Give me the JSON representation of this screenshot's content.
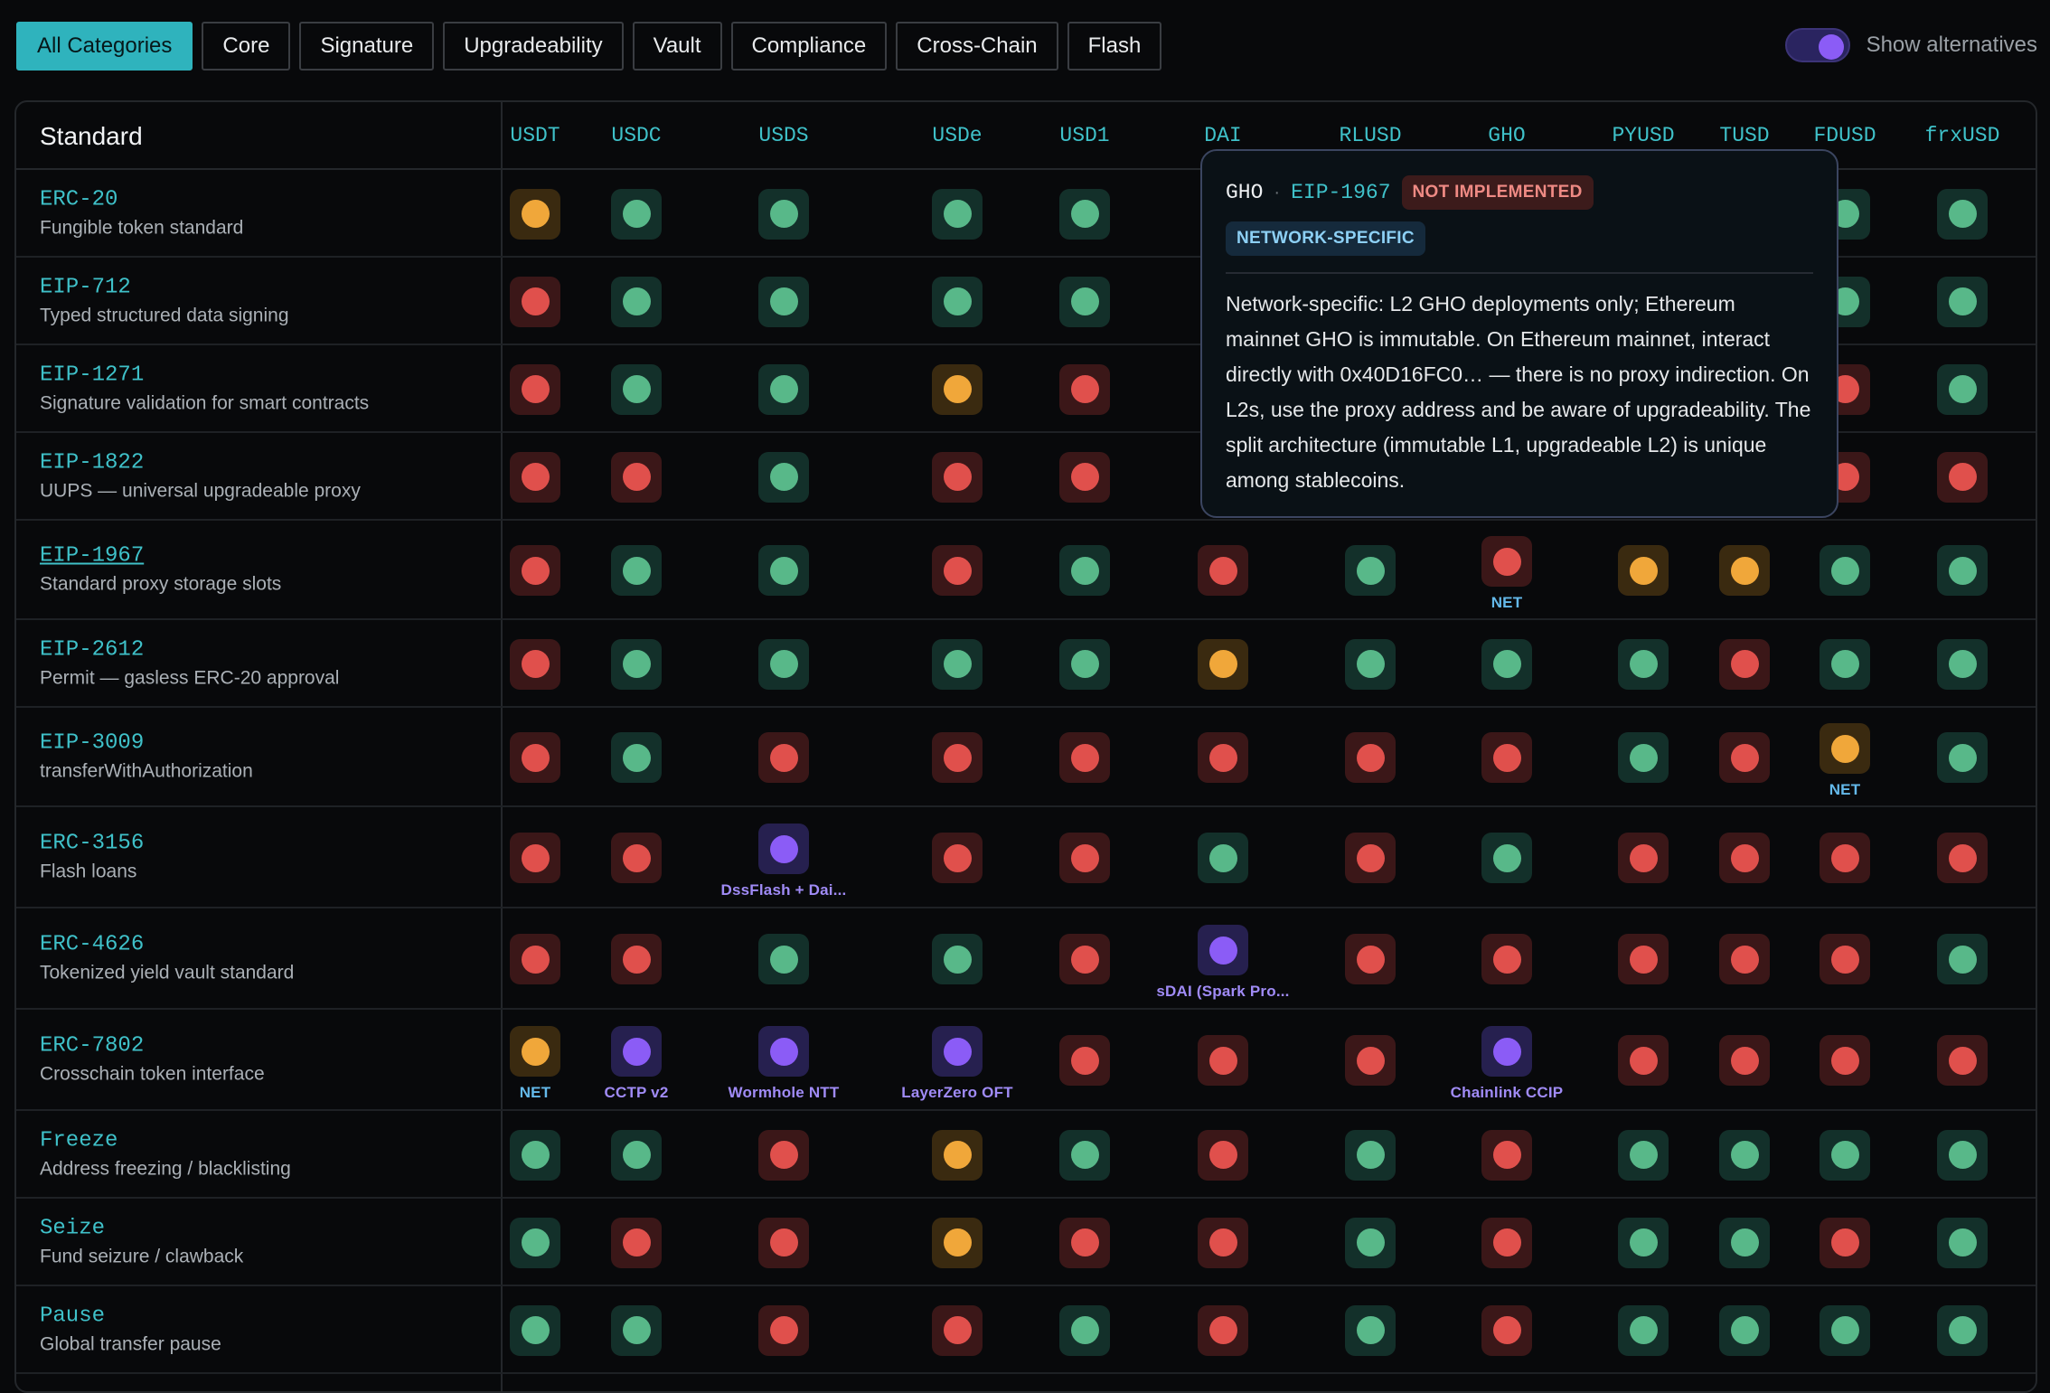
{
  "filters": {
    "categories": [
      "All Categories",
      "Core",
      "Signature",
      "Upgradeability",
      "Vault",
      "Compliance",
      "Cross-Chain",
      "Flash"
    ],
    "active": "All Categories"
  },
  "toggle": {
    "label": "Show alternatives",
    "on": true,
    "accent": "#8b5cf6"
  },
  "table": {
    "standard_header": "Standard",
    "columns": [
      "USDT",
      "USDC",
      "USDS",
      "USDe",
      "USD1",
      "DAI",
      "RLUSD",
      "GHO",
      "PYUSD",
      "TUSD",
      "FDUSD",
      "frxUSD"
    ],
    "rows": [
      {
        "name": "ERC-20",
        "desc": "Fungible token standard",
        "cells": [
          "orange",
          "green",
          "green",
          "green",
          "green",
          "",
          "",
          "",
          "",
          "",
          "green",
          "green"
        ]
      },
      {
        "name": "EIP-712",
        "desc": "Typed structured data signing",
        "cells": [
          "red",
          "green",
          "green",
          "green",
          "green",
          "",
          "",
          "",
          "",
          "",
          "green",
          "green"
        ]
      },
      {
        "name": "EIP-1271",
        "desc": "Signature validation for smart contracts",
        "cells": [
          "red",
          "green",
          "green",
          "orange",
          "red",
          "",
          "",
          "",
          "",
          "",
          "red",
          "green"
        ]
      },
      {
        "name": "EIP-1822",
        "desc": "UUPS — universal upgradeable proxy",
        "cells": [
          "red",
          "red",
          "green",
          "red",
          "red",
          "",
          "",
          "",
          "",
          "",
          "red",
          "red"
        ]
      },
      {
        "name": "EIP-1967",
        "desc": "Standard proxy storage slots",
        "underline": true,
        "cells": [
          "red",
          "green",
          "green",
          "red",
          "green",
          "red",
          "green",
          "red",
          "orange",
          "orange",
          "green",
          "green"
        ],
        "captions": {
          "7": "NET"
        }
      },
      {
        "name": "EIP-2612",
        "desc": "Permit — gasless ERC-20 approval",
        "cells": [
          "red",
          "green",
          "green",
          "green",
          "green",
          "orange",
          "green",
          "green",
          "green",
          "red",
          "green",
          "green"
        ]
      },
      {
        "name": "EIP-3009",
        "desc": "transferWithAuthorization",
        "cells": [
          "red",
          "green",
          "red",
          "red",
          "red",
          "red",
          "red",
          "red",
          "green",
          "red",
          "orange",
          "green"
        ],
        "captions": {
          "10": "NET"
        }
      },
      {
        "name": "ERC-3156",
        "desc": "Flash loans",
        "cells": [
          "red",
          "red",
          "purple",
          "red",
          "red",
          "green",
          "red",
          "green",
          "red",
          "red",
          "red",
          "red"
        ],
        "captions": {
          "2": "DssFlash + Dai..."
        }
      },
      {
        "name": "ERC-4626",
        "desc": "Tokenized yield vault standard",
        "cells": [
          "red",
          "red",
          "green",
          "green",
          "red",
          "purple",
          "red",
          "red",
          "red",
          "red",
          "red",
          "green"
        ],
        "captions": {
          "5": "sDAI (Spark Pro..."
        }
      },
      {
        "name": "ERC-7802",
        "desc": "Crosschain token interface",
        "cells": [
          "orange",
          "purple",
          "purple",
          "purple",
          "red",
          "red",
          "red",
          "purple",
          "red",
          "red",
          "red",
          "red"
        ],
        "captions": {
          "0": "NET",
          "1": "CCTP v2",
          "2": "Wormhole NTT",
          "3": "LayerZero OFT",
          "7": "Chainlink CCIP"
        }
      },
      {
        "name": "Freeze",
        "desc": "Address freezing / blacklisting",
        "cells": [
          "green",
          "green",
          "red",
          "orange",
          "green",
          "red",
          "green",
          "red",
          "green",
          "green",
          "green",
          "green"
        ]
      },
      {
        "name": "Seize",
        "desc": "Fund seizure / clawback",
        "cells": [
          "green",
          "red",
          "red",
          "orange",
          "red",
          "red",
          "green",
          "red",
          "green",
          "green",
          "red",
          "green"
        ]
      },
      {
        "name": "Pause",
        "desc": "Global transfer pause",
        "cells": [
          "green",
          "green",
          "red",
          "red",
          "green",
          "red",
          "green",
          "red",
          "green",
          "green",
          "green",
          "green"
        ]
      }
    ]
  },
  "tooltip": {
    "token": "GHO",
    "separator": "·",
    "standard": "EIP-1967",
    "status_badge": "NOT IMPLEMENTED",
    "scope_badge": "NETWORK-SPECIFIC",
    "body": "Network-specific: L2 GHO deployments only; Ethereum mainnet GHO is immutable. On Ethereum mainnet, interact directly with 0x40D16FC0… — there is no proxy indirection. On L2s, use the proxy address and be aware of upgradeability. The split architecture (immutable L1, upgradeable L2) is unique among stablecoins."
  },
  "colors": {
    "accent": "#3fc1c9",
    "supported": "#58b889",
    "unsupported": "#e0504c",
    "partial": "#f0a73a",
    "alternative": "#8b5cf6"
  }
}
